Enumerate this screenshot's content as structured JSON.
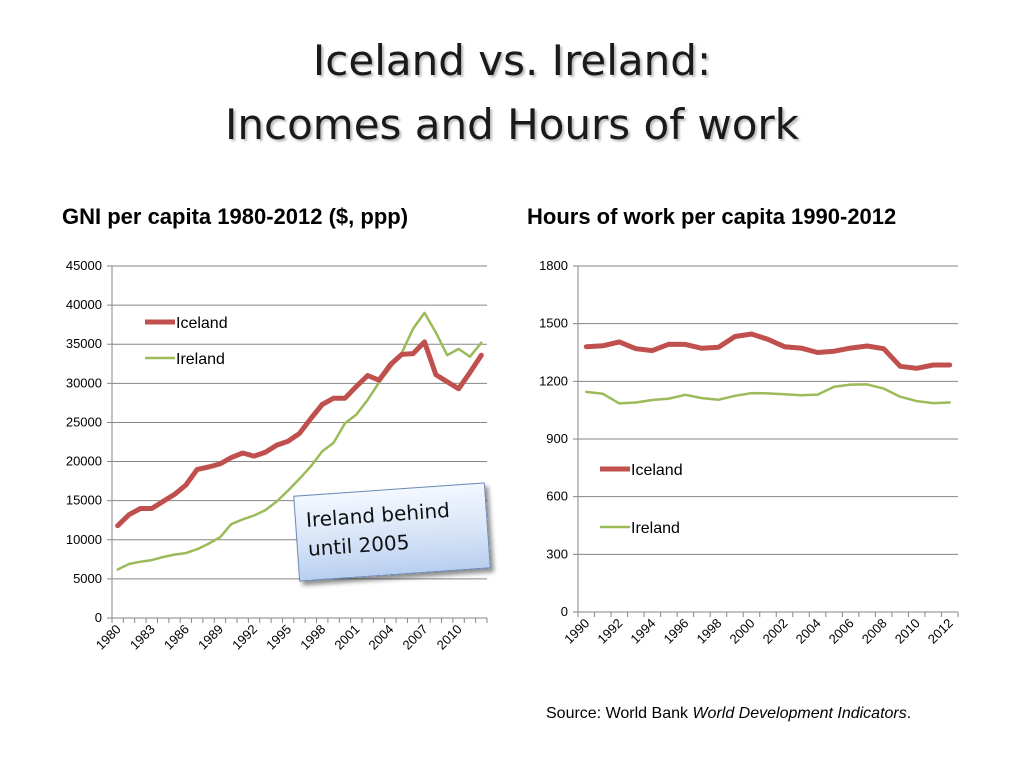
{
  "title_line1": "Iceland vs. Ireland:",
  "title_line2": "Incomes and Hours of work",
  "callout": {
    "line1": "Ireland behind",
    "line2": "until 2005"
  },
  "source": {
    "prefix": "Source: World Bank ",
    "italic": "World Development Indicators",
    "suffix": "."
  },
  "colors": {
    "iceland": "#c0504d",
    "ireland": "#9bbb59",
    "grid": "#868686"
  },
  "chart_data": [
    {
      "type": "line",
      "title": "GNI per capita 1980-2012 ($, ppp)",
      "x": [
        1980,
        1981,
        1982,
        1983,
        1984,
        1985,
        1986,
        1987,
        1988,
        1989,
        1990,
        1991,
        1992,
        1993,
        1994,
        1995,
        1996,
        1997,
        1998,
        1999,
        2000,
        2001,
        2002,
        2003,
        2004,
        2005,
        2006,
        2007,
        2008,
        2009,
        2010,
        2011,
        2012
      ],
      "x_tick_labels": [
        "1980",
        "1983",
        "1986",
        "1989",
        "1992",
        "1995",
        "1998",
        "2001",
        "2004",
        "2007",
        "2010"
      ],
      "y_ticks": [
        0,
        5000,
        10000,
        15000,
        20000,
        25000,
        30000,
        35000,
        40000,
        45000
      ],
      "ylim": [
        0,
        45000
      ],
      "grid": true,
      "legend": "top-left",
      "series": [
        {
          "name": "Iceland",
          "values": [
            11800,
            13200,
            14000,
            14000,
            14900,
            15800,
            17000,
            19000,
            19300,
            19700,
            20500,
            21100,
            20700,
            21200,
            22100,
            22600,
            23600,
            25500,
            27300,
            28100,
            28100,
            29600,
            31000,
            30400,
            32400,
            33700,
            33800,
            35300,
            31100,
            30200,
            29300,
            31400,
            33600
          ]
        },
        {
          "name": "Ireland",
          "values": [
            6200,
            6900,
            7200,
            7400,
            7800,
            8100,
            8300,
            8800,
            9500,
            10300,
            12000,
            12600,
            13100,
            13800,
            14900,
            16300,
            17800,
            19400,
            21300,
            22400,
            24900,
            26000,
            27900,
            30100,
            32000,
            33900,
            37000,
            39000,
            36500,
            33600,
            34400,
            33400,
            35200
          ]
        }
      ]
    },
    {
      "type": "line",
      "title": "Hours of work per capita 1990-2012",
      "x": [
        1990,
        1991,
        1992,
        1993,
        1994,
        1995,
        1996,
        1997,
        1998,
        1999,
        2000,
        2001,
        2002,
        2003,
        2004,
        2005,
        2006,
        2007,
        2008,
        2009,
        2010,
        2011,
        2012
      ],
      "x_tick_labels": [
        "1990",
        "1992",
        "1994",
        "1996",
        "1998",
        "2000",
        "2002",
        "2004",
        "2006",
        "2008",
        "2010",
        "2012"
      ],
      "y_ticks": [
        0,
        300,
        600,
        900,
        1200,
        1500,
        1800
      ],
      "ylim": [
        0,
        1800
      ],
      "grid": true,
      "legend": "center-left",
      "series": [
        {
          "name": "Iceland",
          "values": [
            1380,
            1385,
            1405,
            1370,
            1360,
            1393,
            1392,
            1372,
            1377,
            1433,
            1446,
            1418,
            1380,
            1373,
            1350,
            1357,
            1373,
            1384,
            1370,
            1278,
            1268,
            1285,
            1285
          ]
        },
        {
          "name": "Ireland",
          "values": [
            1145,
            1135,
            1085,
            1090,
            1103,
            1110,
            1130,
            1113,
            1104,
            1125,
            1139,
            1137,
            1133,
            1128,
            1131,
            1172,
            1183,
            1184,
            1162,
            1120,
            1097,
            1087,
            1090
          ]
        }
      ]
    }
  ]
}
